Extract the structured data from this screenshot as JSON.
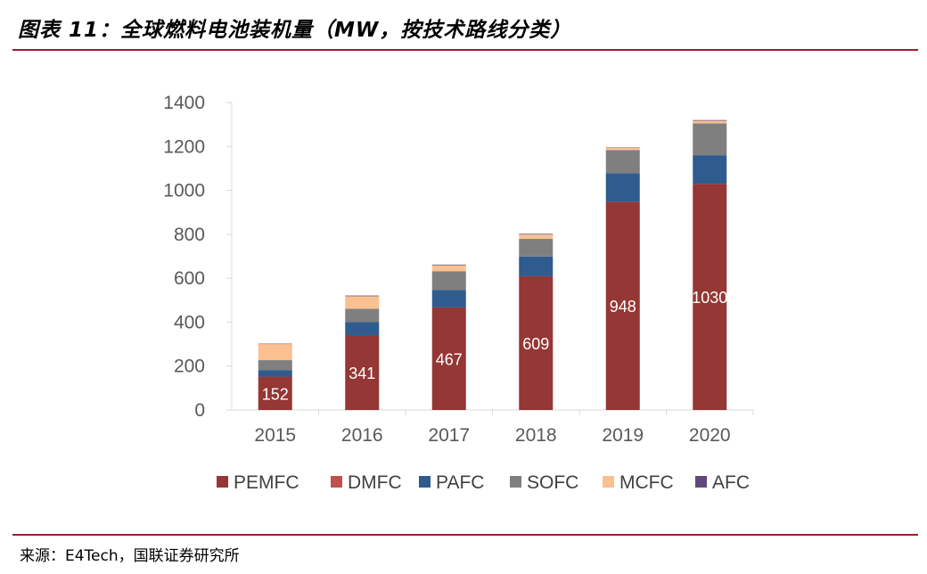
{
  "header": {
    "title": "图表 11：全球燃料电池装机量（MW，按技术路线分类）"
  },
  "footer": {
    "source": "来源：E4Tech，国联证券研究所"
  },
  "chart_data": {
    "type": "bar",
    "stacked": true,
    "title": "",
    "xlabel": "",
    "ylabel": "",
    "ylim": [
      0,
      1400
    ],
    "yticks": [
      0,
      200,
      400,
      600,
      800,
      1000,
      1200,
      1400
    ],
    "grid": false,
    "legend": "bottom",
    "categories": [
      "2015",
      "2016",
      "2017",
      "2018",
      "2019",
      "2020"
    ],
    "series": [
      {
        "name": "PEMFC",
        "color": "#953735",
        "values": [
          152,
          341,
          467,
          609,
          948,
          1030
        ],
        "data_labels": [
          "152",
          "341",
          "467",
          "609",
          "948",
          "1030"
        ]
      },
      {
        "name": "DMFC",
        "color": "#c0504d",
        "values": [
          0,
          0,
          0,
          0,
          0,
          0
        ]
      },
      {
        "name": "PAFC",
        "color": "#2f5b8f",
        "values": [
          30,
          60,
          80,
          90,
          130,
          130
        ]
      },
      {
        "name": "SOFC",
        "color": "#7f7f7f",
        "values": [
          45,
          60,
          85,
          80,
          105,
          145
        ]
      },
      {
        "name": "MCFC",
        "color": "#fac090",
        "values": [
          73,
          57,
          27,
          20,
          10,
          12
        ]
      },
      {
        "name": "AFC",
        "color": "#60497a",
        "values": [
          2,
          3,
          3,
          3,
          2,
          3
        ]
      }
    ]
  }
}
